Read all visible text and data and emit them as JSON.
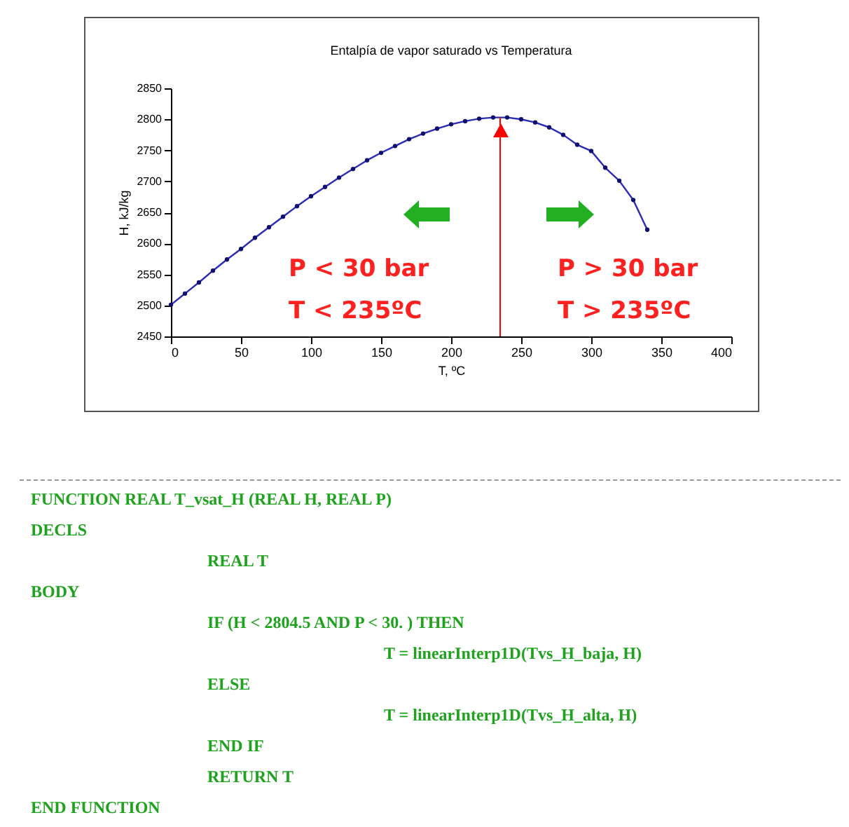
{
  "chart_data": {
    "type": "line",
    "title": "Entalpía de vapor saturado vs Temperatura",
    "xlabel": "T, ºC",
    "ylabel": "H, kJ/kg",
    "x": [
      0,
      10,
      20,
      30,
      40,
      50,
      60,
      70,
      80,
      90,
      100,
      110,
      120,
      130,
      140,
      150,
      160,
      170,
      180,
      190,
      200,
      210,
      220,
      230,
      240,
      250,
      260,
      270,
      280,
      290,
      300,
      310,
      320,
      330,
      340
    ],
    "series": [
      {
        "color": "#2b2bb8",
        "values": [
          2501,
          2519,
          2537,
          2556,
          2574,
          2591,
          2609,
          2626,
          2643,
          2660,
          2676,
          2691,
          2706,
          2720,
          2734,
          2746,
          2757,
          2768,
          2777,
          2785,
          2792,
          2797,
          2801,
          2803,
          2803,
          2800,
          2795,
          2787,
          2775,
          2759,
          2749,
          2722,
          2701,
          2670,
          2622
        ]
      }
    ],
    "xlim": [
      0,
      400
    ],
    "xticks": [
      0,
      50,
      100,
      150,
      200,
      250,
      300,
      350,
      400
    ],
    "ylim": [
      2450,
      2850
    ],
    "yticks": [
      2450,
      2500,
      2550,
      2600,
      2650,
      2700,
      2750,
      2800,
      2850
    ],
    "marker": "circle",
    "grid": false,
    "ref_lines": [
      {
        "axis": "x",
        "value": 235,
        "color": "#ff0000"
      }
    ],
    "annotations": [
      "P < 30 bar",
      "T < 235ºC",
      "P > 30 bar",
      "T > 235ºC",
      "FUNCTION REAL T_vsat_H (REAL H, REAL P)",
      "DECLS",
      "\t\tREAL T",
      "BODY",
      "\t\tIF (H < 2804.5 AND P < 30. ) THEN",
      "\t\t\t\tT = linearInterp1D(Tvs_H_baja, H)",
      "\t\tELSE",
      "\t\t\t\tT = linearInterp1D(Tvs_H_alta, H)",
      "\t\tEND IF",
      "\t\tRETURN T",
      "END FUNCTION"
    ]
  }
}
